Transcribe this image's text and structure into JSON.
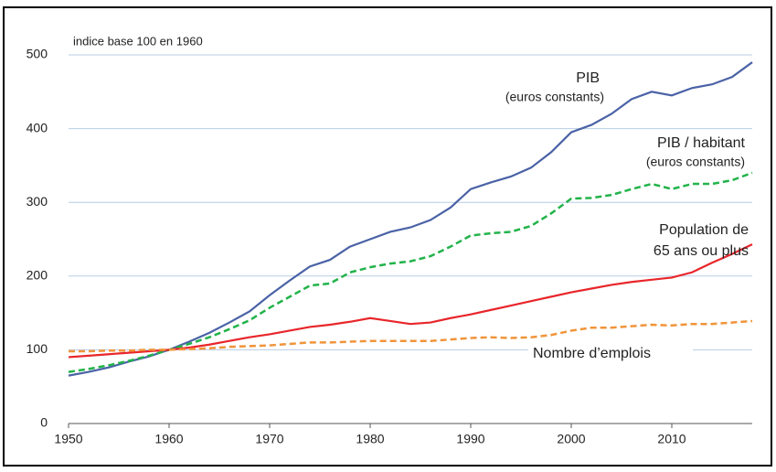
{
  "chart_data": {
    "type": "line",
    "y_label": "indice base 100 en 1960",
    "x": [
      1950,
      1952,
      1954,
      1956,
      1958,
      1960,
      1962,
      1964,
      1966,
      1968,
      1970,
      1972,
      1974,
      1976,
      1978,
      1980,
      1982,
      1984,
      1986,
      1988,
      1990,
      1992,
      1994,
      1996,
      1998,
      2000,
      2002,
      2004,
      2006,
      2008,
      2010,
      2012,
      2014,
      2016,
      2018
    ],
    "series": [
      {
        "name": [
          "PIB",
          "(euros constants)"
        ],
        "color": "#4a62a6",
        "dashed": false,
        "values": [
          65,
          70,
          76,
          84,
          91,
          100,
          111,
          123,
          137,
          152,
          174,
          194,
          213,
          222,
          240,
          250,
          260,
          266,
          276,
          293,
          318,
          327,
          335,
          347,
          368,
          395,
          405,
          420,
          440,
          450,
          445,
          455,
          460,
          470,
          490
        ]
      },
      {
        "name": [
          "PIB / habitant",
          "(euros constants)"
        ],
        "color": "#22b34a",
        "dashed": true,
        "values": [
          70,
          74,
          79,
          85,
          92,
          100,
          108,
          117,
          128,
          140,
          157,
          172,
          187,
          190,
          205,
          212,
          217,
          220,
          227,
          240,
          255,
          258,
          260,
          268,
          285,
          305,
          306,
          310,
          318,
          325,
          318,
          325,
          325,
          330,
          340
        ]
      },
      {
        "name": [
          "Population de",
          "65 ans ou plus"
        ],
        "color": "#e8262b",
        "dashed": false,
        "values": [
          90,
          92,
          94,
          96,
          98,
          100,
          103,
          107,
          112,
          117,
          121,
          126,
          131,
          134,
          138,
          143,
          139,
          135,
          137,
          143,
          148,
          154,
          160,
          166,
          172,
          178,
          183,
          188,
          192,
          195,
          198,
          205,
          218,
          230,
          243
        ]
      },
      {
        "name": [
          "Nombre d’emplois"
        ],
        "color": "#f0943a",
        "dashed": true,
        "values": [
          98,
          98,
          99,
          99,
          100,
          100,
          101,
          102,
          104,
          105,
          106,
          108,
          110,
          110,
          111,
          112,
          112,
          112,
          112,
          114,
          116,
          117,
          116,
          117,
          120,
          126,
          130,
          130,
          132,
          134,
          133,
          135,
          135,
          137,
          139
        ]
      }
    ],
    "xlim": [
      1950,
      2018
    ],
    "xticks": [
      1950,
      1960,
      1970,
      1980,
      1990,
      2000,
      2010
    ],
    "ylim": [
      0,
      500
    ],
    "yticks": [
      0,
      100,
      200,
      300,
      400,
      500
    ],
    "grid": true
  }
}
